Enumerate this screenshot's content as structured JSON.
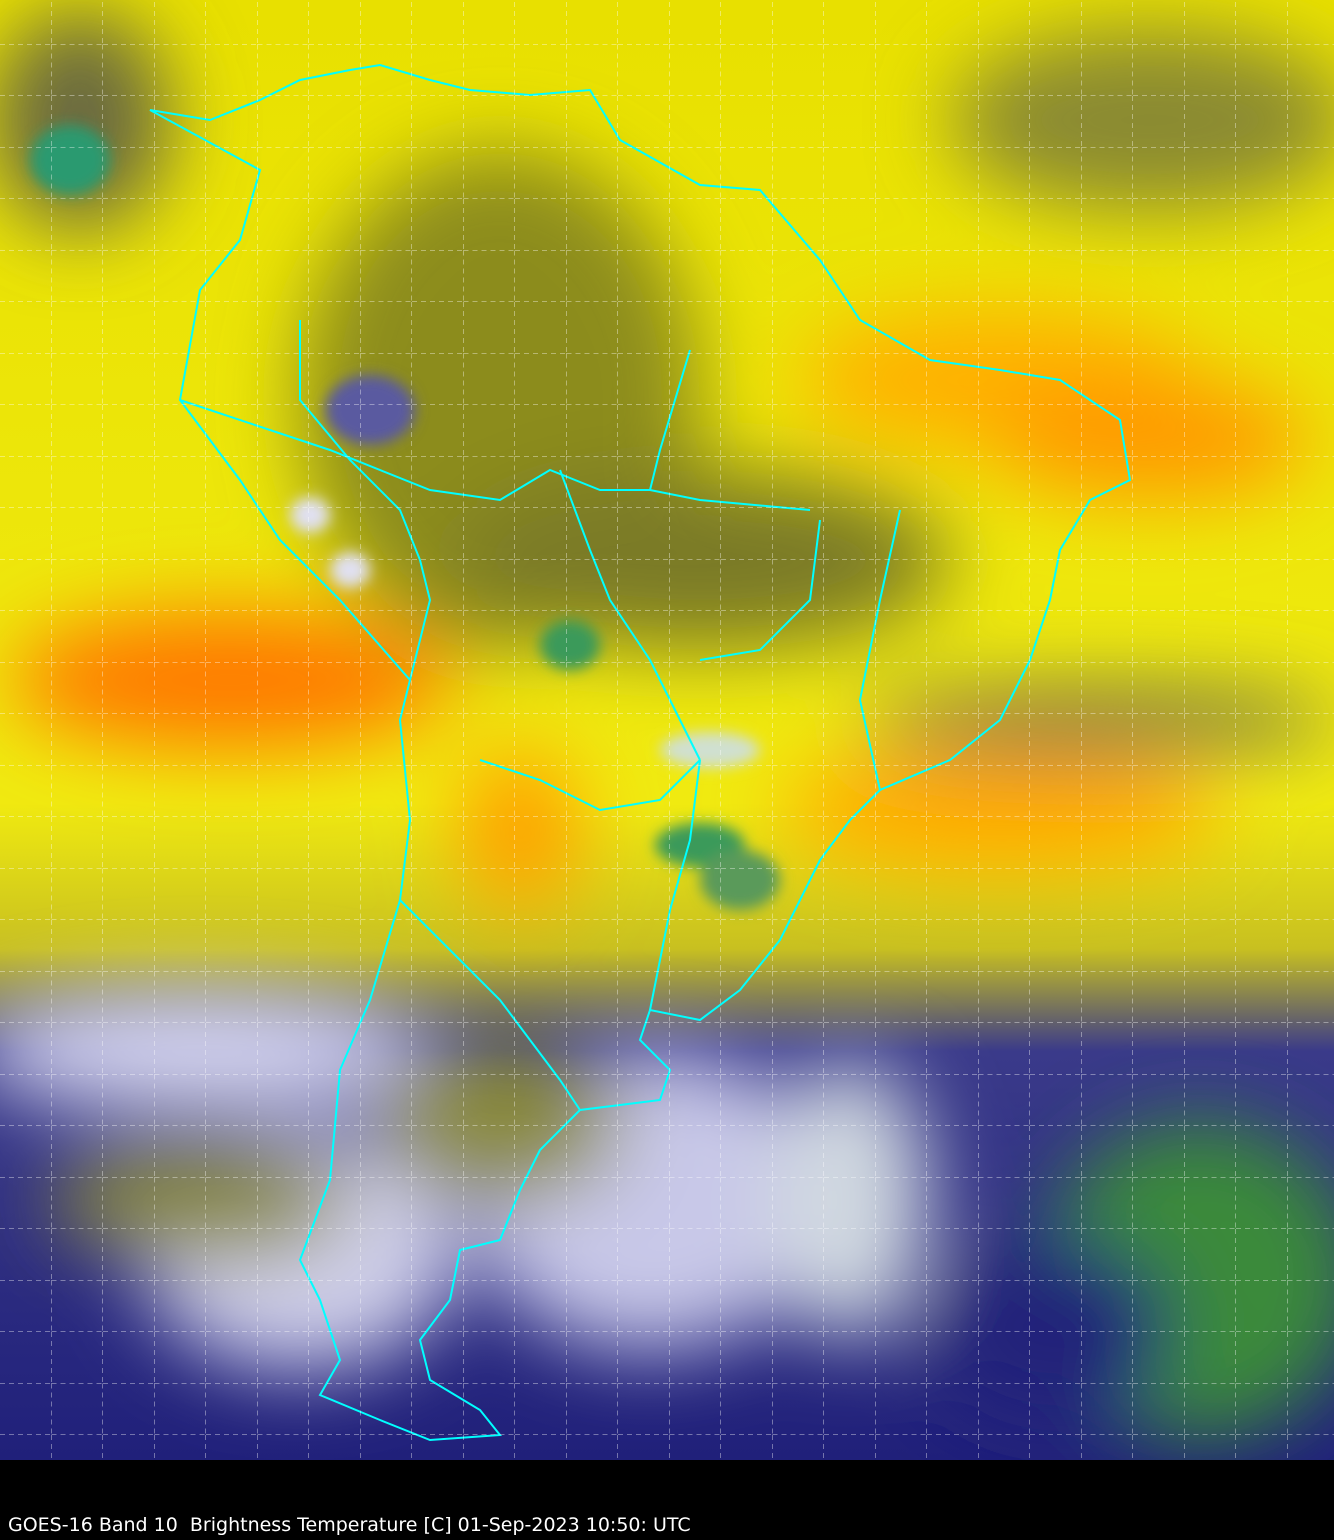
{
  "caption": "GOES-16 Band 10  Brightness Temperature [C] 01-Sep-2023 10:50: UTC",
  "map": {
    "satellite": "GOES-16",
    "band": "Band 10",
    "product": "Brightness Temperature",
    "unit": "C",
    "region": "South America",
    "boundary_color": "#00ffff",
    "grid_color": "#ffffff",
    "grid_style": "dashed",
    "colors": {
      "warm": "#ff6a00",
      "moderate": "#ffff00",
      "moist": "#9a9a20",
      "cold": "#1a1a80",
      "very_cold": "#ffffff",
      "coldest": "#3a9a3a"
    }
  }
}
